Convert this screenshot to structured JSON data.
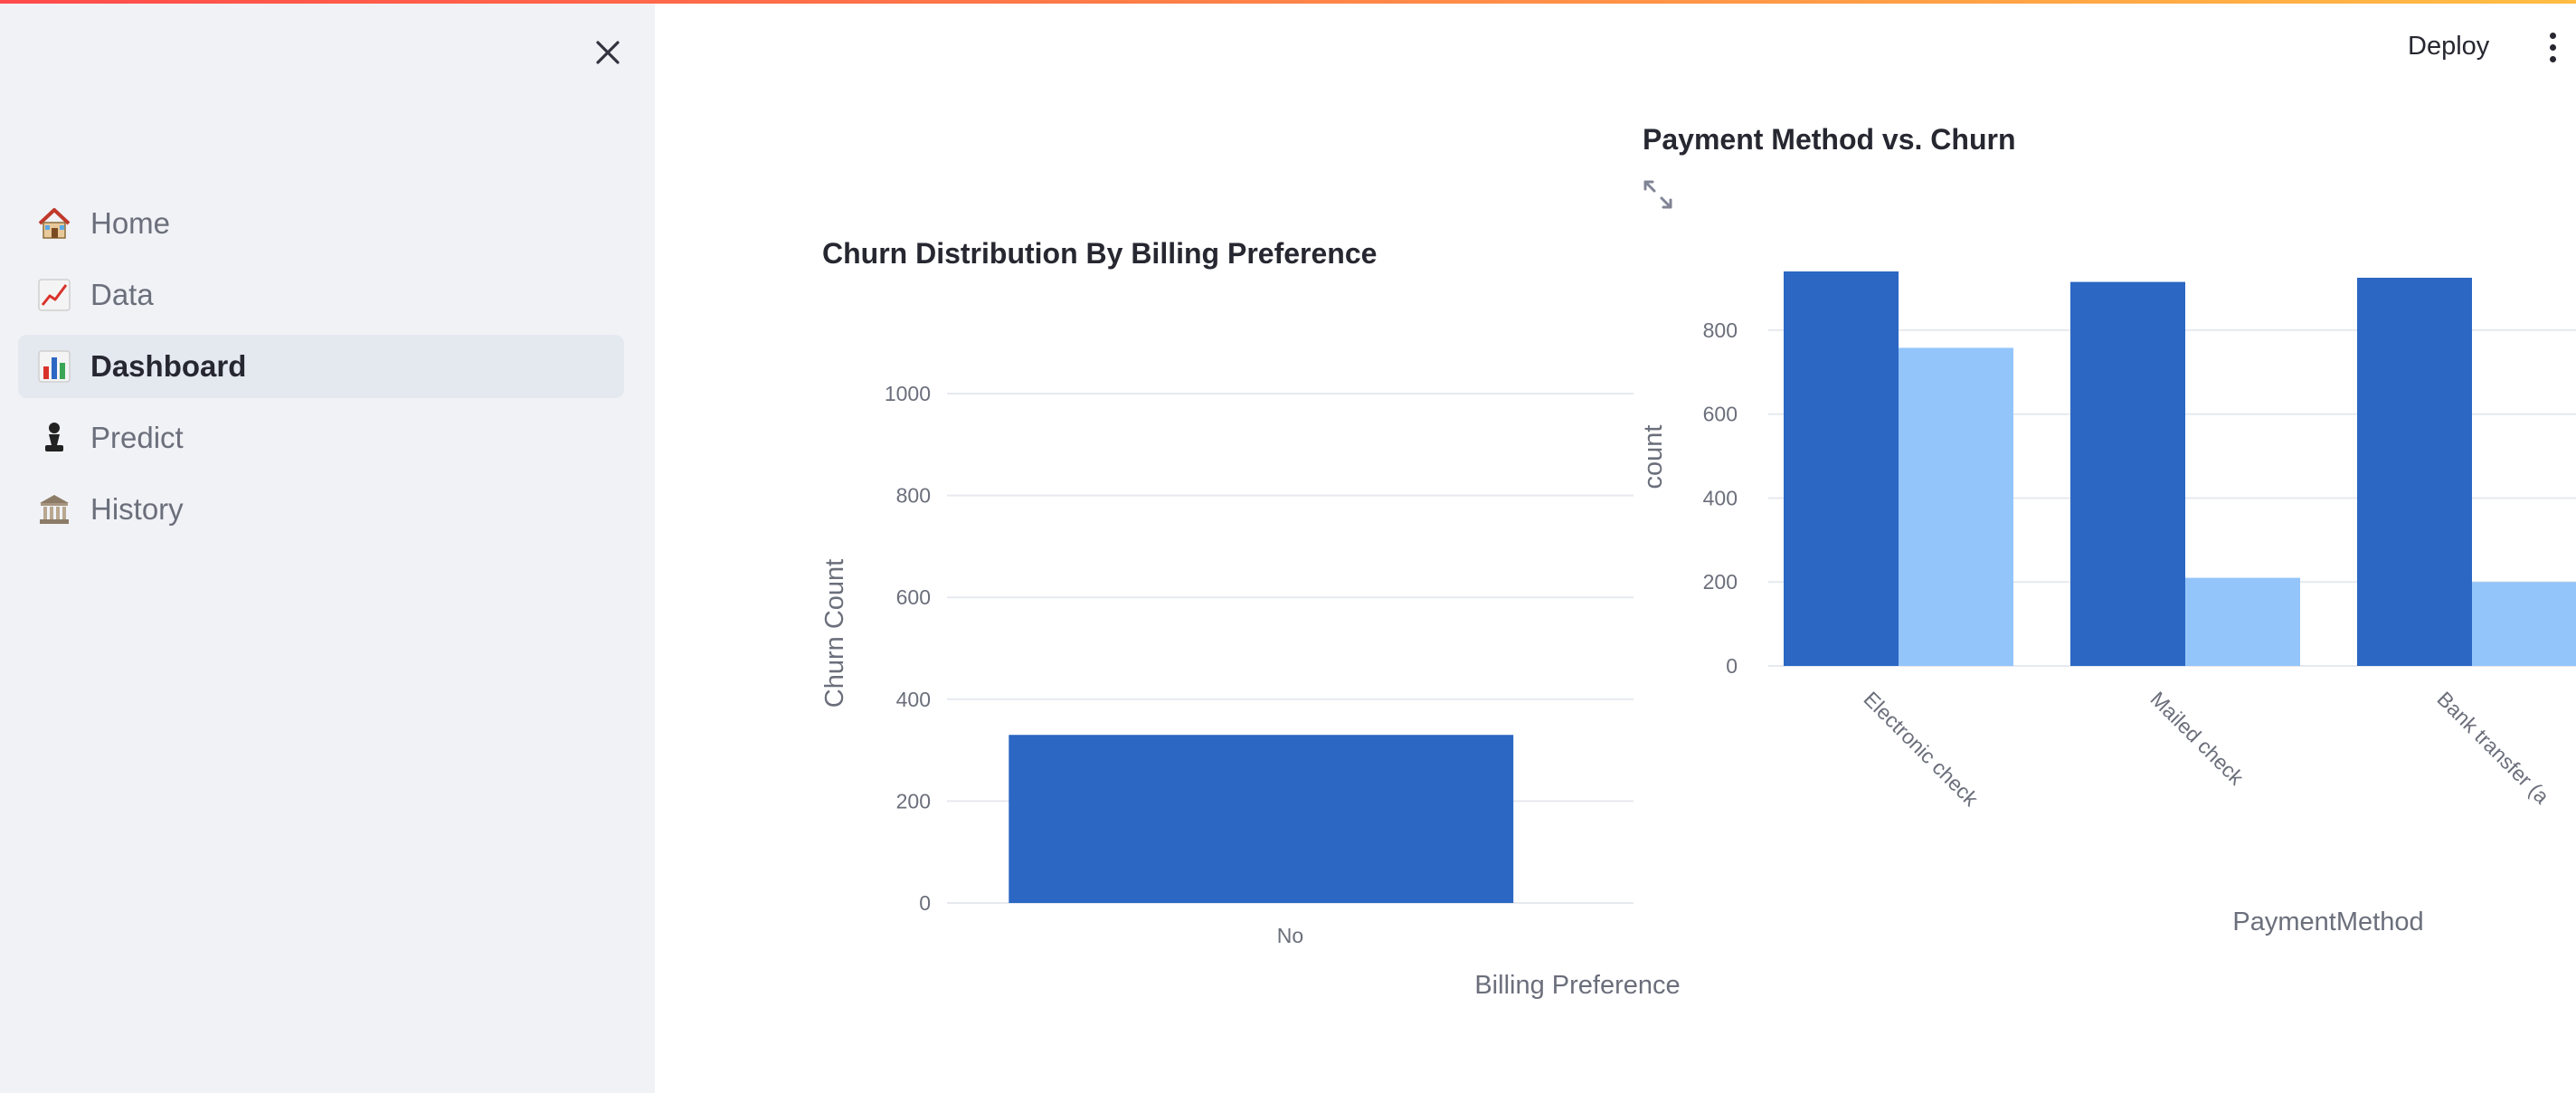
{
  "sidebar": {
    "close_icon": "close-icon",
    "items": [
      {
        "label": "Home",
        "icon": "house-icon",
        "active": false
      },
      {
        "label": "Data",
        "icon": "chart-increasing-icon",
        "active": false
      },
      {
        "label": "Dashboard",
        "icon": "bar-chart-icon",
        "active": true
      },
      {
        "label": "Predict",
        "icon": "chess-pawn-icon",
        "active": false
      },
      {
        "label": "History",
        "icon": "classical-building-icon",
        "active": false
      }
    ]
  },
  "header": {
    "deploy_label": "Deploy",
    "menu_icon": "vertical-ellipsis-icon"
  },
  "colors": {
    "accent_dark_blue": "#2b67c3",
    "accent_light_blue": "#93c5fb",
    "sidebar_bg": "#f0f2f6"
  },
  "chart_data": [
    {
      "type": "bar",
      "title": "Churn Distribution By Billing Preference",
      "xlabel": "Billing Preference",
      "ylabel": "Churn Count",
      "categories": [
        "No"
      ],
      "values": [
        330
      ],
      "ylim": [
        0,
        1000
      ],
      "yticks": [
        0,
        200,
        400,
        600,
        800,
        1000
      ],
      "grid": true
    },
    {
      "type": "bar",
      "title": "Payment Method vs. Churn",
      "xlabel": "PaymentMethod",
      "ylabel": "count",
      "categories": [
        "Electronic check",
        "Mailed check",
        "Bank transfer (a"
      ],
      "series": [
        {
          "values": [
            940,
            915,
            925
          ],
          "color": "#2b67c3"
        },
        {
          "values": [
            758,
            210,
            200
          ],
          "color": "#93c5fb"
        }
      ],
      "ylim": [
        0,
        940
      ],
      "yticks": [
        0,
        200,
        400,
        600,
        800
      ],
      "grid": true
    }
  ]
}
